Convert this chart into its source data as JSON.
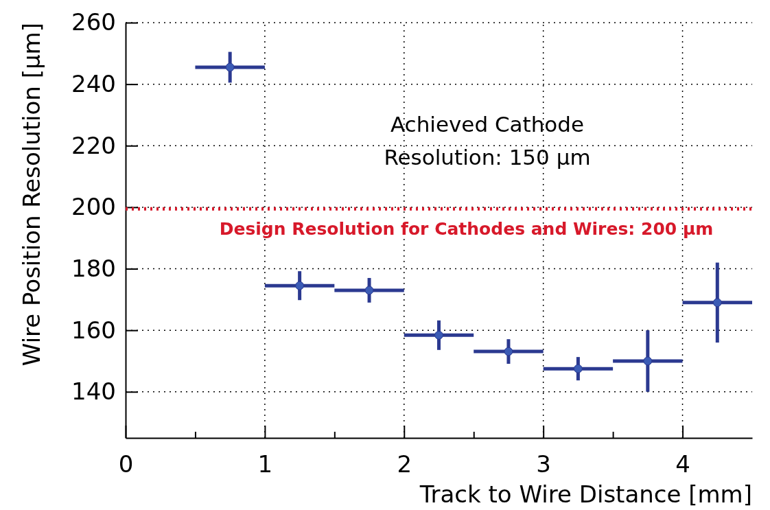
{
  "chart_data": {
    "type": "scatter",
    "xlabel": "Track to Wire Distance [mm]",
    "ylabel": "Wire Position Resolution [µm]",
    "x": [
      0.75,
      1.25,
      1.75,
      2.25,
      2.75,
      3.25,
      3.75,
      4.25
    ],
    "series": [
      {
        "color": "#2b3990",
        "values": [
          245.5,
          174.5,
          173.0,
          158.4,
          153.1,
          147.5,
          150.0,
          169.0
        ],
        "errors": [
          5,
          4.7,
          4,
          4.8,
          4,
          3.8,
          10,
          13
        ],
        "xerrors": [
          0.25,
          0.25,
          0.25,
          0.25,
          0.25,
          0.25,
          0.25,
          0.25
        ]
      }
    ],
    "marker": "circle",
    "xlim": [
      0,
      4.5
    ],
    "xticks": [
      0,
      {
        "value": 0.5,
        "label": null
      },
      1,
      {
        "value": 1.5,
        "label": null
      },
      2,
      {
        "value": 2.5,
        "label": null
      },
      3,
      {
        "value": 3.5,
        "label": null
      },
      4
    ],
    "ylim": [
      125,
      260
    ],
    "yticks": [
      140,
      160,
      180,
      200,
      220,
      240,
      260
    ],
    "grid": true,
    "ref_lines": [
      {
        "axis": "y",
        "value": 199.5,
        "label": "Design Resolution for Cathodes and Wires:  200 µm",
        "color": "#d7192a",
        "line_style": "dotted"
      }
    ],
    "annotations": [
      {
        "text": "Achieved Cathode\nResolution:  150 µm"
      }
    ]
  }
}
